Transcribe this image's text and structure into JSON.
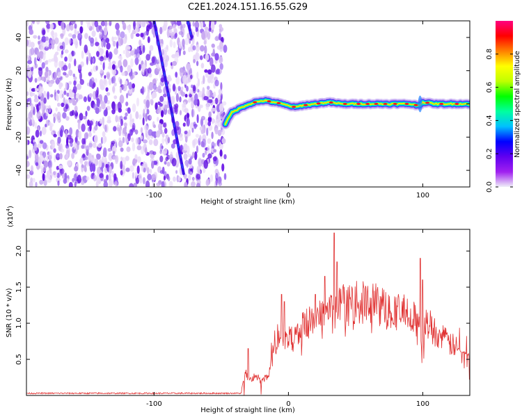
{
  "title": "C2E1.2024.151.16.55.G29",
  "chart_data": [
    {
      "type": "heatmap",
      "xlabel": "Height of straight line (km)",
      "ylabel": "Frequency (Hz)",
      "xlim": [
        -195,
        135
      ],
      "ylim": [
        -50,
        50
      ],
      "x_ticks": [
        -100,
        0,
        100
      ],
      "y_ticks": [
        -40,
        -20,
        0,
        20,
        40
      ],
      "colorbar": {
        "label": "Normalized spectral amplitude",
        "range": [
          0,
          1
        ],
        "ticks": [
          0.0,
          0.2,
          0.4,
          0.6,
          0.8
        ],
        "colors": [
          "#f0f0f8",
          "#a020f0",
          "#6000f0",
          "#0000ff",
          "#00c0ff",
          "#00ffa0",
          "#00ff00",
          "#c0ff00",
          "#ffff00",
          "#ff8000",
          "#ff0000",
          "#ff0080"
        ]
      },
      "noise_region_x": [
        -195,
        -47
      ],
      "streak_lines": [
        {
          "x": [
            -100,
            -78
          ],
          "y": [
            50,
            -42
          ]
        },
        {
          "x": [
            -75,
            -72
          ],
          "y": [
            50,
            40
          ]
        }
      ],
      "ridge": {
        "x": [
          -47,
          -42,
          -37,
          -32,
          -25,
          -18,
          -10,
          0,
          5,
          10,
          20,
          30,
          40,
          50,
          60,
          70,
          80,
          90,
          97,
          100,
          110,
          120,
          135
        ],
        "y": [
          -12,
          -5,
          -3,
          -1,
          1,
          2,
          1,
          -1,
          -2,
          -1,
          0,
          1,
          0,
          0,
          0,
          0,
          0,
          0,
          -1,
          1,
          0,
          0,
          0
        ]
      }
    },
    {
      "type": "line",
      "xlabel": "Height of straight line (km)",
      "ylabel": "SNR (10 * v/v)",
      "y_multiplier": "(x10",
      "y_exponent": "4",
      "xlim": [
        -195,
        135
      ],
      "ylim": [
        0,
        2.3
      ],
      "x_ticks": [
        -100,
        0,
        100
      ],
      "y_ticks": [
        0.5,
        1.0,
        1.5,
        2.0
      ],
      "color": "#e03030",
      "baseline": {
        "x": [
          -195,
          -35
        ],
        "y": 0.03
      },
      "envelope": {
        "x": [
          -35,
          -32,
          -30,
          -25,
          -20,
          -15,
          -10,
          -5,
          0,
          10,
          20,
          30,
          40,
          50,
          60,
          70,
          80,
          90,
          95,
          100,
          103,
          110,
          120,
          130,
          135
        ],
        "y": [
          0.05,
          0.35,
          0.2,
          0.25,
          0.2,
          0.25,
          0.7,
          0.85,
          0.75,
          0.9,
          1.05,
          1.15,
          1.2,
          1.25,
          1.25,
          1.2,
          1.15,
          1.1,
          1.0,
          0.8,
          1.0,
          0.85,
          0.7,
          0.6,
          0.55
        ]
      },
      "spikes": [
        {
          "x": -30,
          "y": 0.65
        },
        {
          "x": -5,
          "y": 1.4
        },
        {
          "x": -3,
          "y": 1.3
        },
        {
          "x": 20,
          "y": 1.4
        },
        {
          "x": 27,
          "y": 1.65
        },
        {
          "x": 34,
          "y": 2.25
        },
        {
          "x": 36,
          "y": 1.85
        },
        {
          "x": 98,
          "y": 1.9
        },
        {
          "x": 100,
          "y": 1.6
        }
      ]
    }
  ]
}
